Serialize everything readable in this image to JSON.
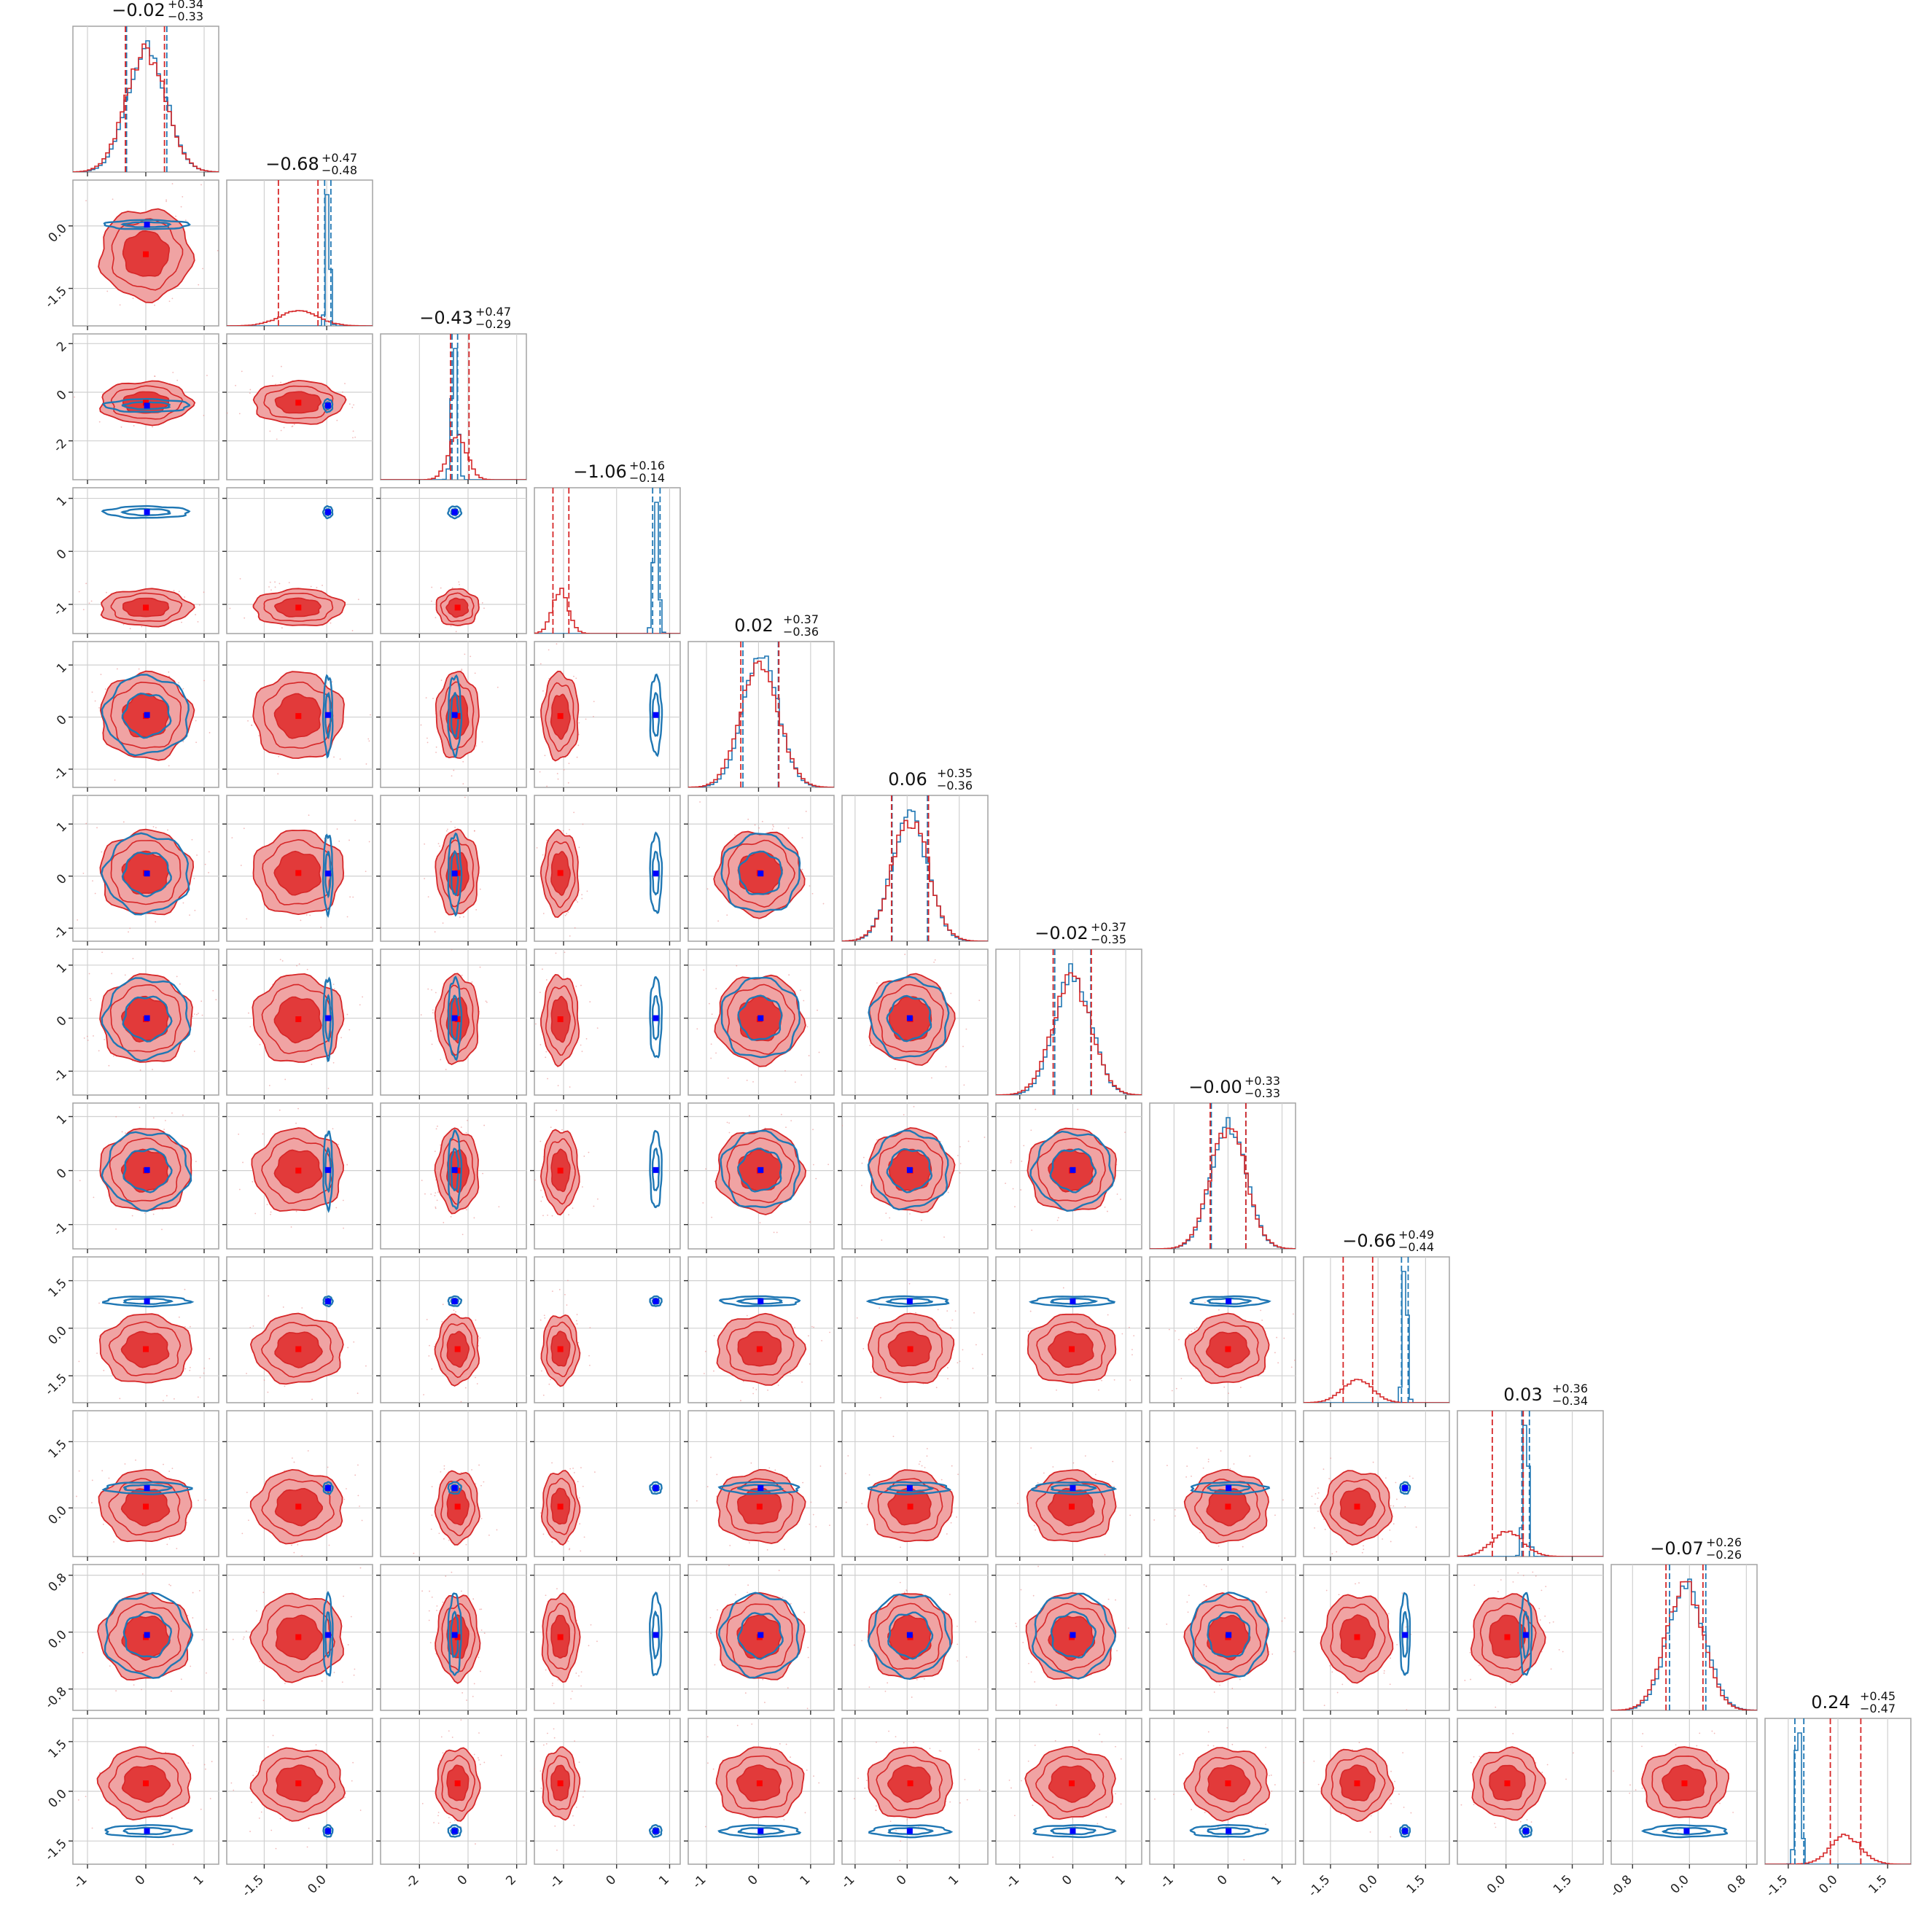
{
  "chart_data": {
    "type": "corner",
    "title": "",
    "colors": {
      "red": "#d62728",
      "red_fill_inner": "#e23a3a",
      "red_fill_outer": "#f0a3a3",
      "blue": "#1f77b4",
      "marker_blue": "#0000ff",
      "marker_red": "#ff0000"
    },
    "grid": true,
    "series": [
      {
        "color": "#d62728",
        "kind": "filled contours + step histogram"
      },
      {
        "color": "#1f77b4",
        "kind": "line contours + step histogram"
      }
    ],
    "parameters": [
      {
        "index": 0,
        "range": [
          -1.25,
          1.25
        ],
        "ticks": [
          -1,
          0,
          1
        ],
        "tick_labels": [
          "-1",
          "0",
          "1"
        ],
        "title": "−0.02",
        "title_plus": "+0.34",
        "title_minus": "−0.33",
        "red": {
          "mean": 0.0,
          "sd": 0.34
        },
        "blue": {
          "mean": 0.02,
          "sd": 0.33
        },
        "red_quantiles": [
          -0.35,
          0.32
        ],
        "blue_quantiles": [
          -0.33,
          0.36
        ]
      },
      {
        "index": 1,
        "range": [
          -2.4,
          1.1
        ],
        "ticks": [
          -1.5,
          0.0
        ],
        "tick_labels": [
          "-1.5",
          "0.0"
        ],
        "title": "−0.68",
        "title_plus": "+0.47",
        "title_minus": "−0.48",
        "red": {
          "mean": -0.68,
          "sd": 0.47
        },
        "blue": {
          "mean": 0.03,
          "sd": 0.05
        },
        "red_quantiles": [
          -1.16,
          -0.21
        ],
        "blue_quantiles": [
          -0.05,
          0.1
        ]
      },
      {
        "index": 2,
        "range": [
          -3.6,
          2.4
        ],
        "ticks": [
          -2,
          0,
          2
        ],
        "tick_labels": [
          "-2",
          "0",
          "2"
        ],
        "title": "−0.43",
        "title_plus": "+0.47",
        "title_minus": "−0.29",
        "red": {
          "mean": -0.43,
          "sd": 0.38
        },
        "blue": {
          "mean": -0.55,
          "sd": 0.12
        },
        "red_quantiles": [
          -0.72,
          0.04
        ],
        "blue_quantiles": [
          -0.66,
          -0.43
        ]
      },
      {
        "index": 3,
        "range": [
          -1.55,
          1.2
        ],
        "ticks": [
          -1,
          0,
          1
        ],
        "tick_labels": [
          "-1",
          "0",
          "1"
        ],
        "title": "−1.06",
        "title_plus": "+0.16",
        "title_minus": "−0.14",
        "red": {
          "mean": -1.06,
          "sd": 0.15
        },
        "blue": {
          "mean": 0.74,
          "sd": 0.05
        },
        "red_quantiles": [
          -1.2,
          -0.9
        ],
        "blue_quantiles": [
          0.68,
          0.82
        ]
      },
      {
        "index": 4,
        "range": [
          -1.35,
          1.45
        ],
        "ticks": [
          -1,
          0,
          1
        ],
        "tick_labels": [
          "-1",
          "0",
          "1"
        ],
        "title": "0.02",
        "title_plus": "+0.37",
        "title_minus": "−0.36",
        "red": {
          "mean": 0.02,
          "sd": 0.36
        },
        "blue": {
          "mean": 0.04,
          "sd": 0.34
        },
        "red_quantiles": [
          -0.34,
          0.39
        ],
        "blue_quantiles": [
          -0.3,
          0.38
        ]
      },
      {
        "index": 5,
        "range": [
          -1.25,
          1.55
        ],
        "ticks": [
          -1,
          0,
          1
        ],
        "tick_labels": [
          "-1",
          "0",
          "1"
        ],
        "title": "0.06",
        "title_plus": "+0.35",
        "title_minus": "−0.36",
        "red": {
          "mean": 0.06,
          "sd": 0.35
        },
        "blue": {
          "mean": 0.05,
          "sd": 0.34
        },
        "red_quantiles": [
          -0.3,
          0.41
        ],
        "blue_quantiles": [
          -0.29,
          0.39
        ]
      },
      {
        "index": 6,
        "range": [
          -1.45,
          1.3
        ],
        "ticks": [
          -1,
          0,
          1
        ],
        "tick_labels": [
          "-1",
          "0",
          "1"
        ],
        "title": "−0.02",
        "title_plus": "+0.37",
        "title_minus": "−0.35",
        "red": {
          "mean": -0.02,
          "sd": 0.36
        },
        "blue": {
          "mean": 0.0,
          "sd": 0.34
        },
        "red_quantiles": [
          -0.37,
          0.35
        ],
        "blue_quantiles": [
          -0.34,
          0.34
        ]
      },
      {
        "index": 7,
        "range": [
          -1.45,
          1.25
        ],
        "ticks": [
          -1,
          0,
          1
        ],
        "tick_labels": [
          "-1",
          "0",
          "1"
        ],
        "title": "−0.00",
        "title_plus": "+0.33",
        "title_minus": "−0.33",
        "red": {
          "mean": 0.0,
          "sd": 0.33
        },
        "blue": {
          "mean": 0.01,
          "sd": 0.32
        },
        "red_quantiles": [
          -0.33,
          0.33
        ],
        "blue_quantiles": [
          -0.31,
          0.33
        ]
      },
      {
        "index": 8,
        "range": [
          -2.35,
          2.25
        ],
        "ticks": [
          -1.5,
          0.0,
          1.5
        ],
        "tick_labels": [
          "-1.5",
          "0.0",
          "1.5"
        ],
        "title": "−0.66",
        "title_plus": "+0.49",
        "title_minus": "−0.44",
        "red": {
          "mean": -0.66,
          "sd": 0.47
        },
        "blue": {
          "mean": 0.85,
          "sd": 0.07
        },
        "red_quantiles": [
          -1.1,
          -0.17
        ],
        "blue_quantiles": [
          0.74,
          0.95
        ]
      },
      {
        "index": 9,
        "range": [
          -1.1,
          2.2
        ],
        "ticks": [
          0.0,
          1.5
        ],
        "tick_labels": [
          "0.0",
          "1.5"
        ],
        "title": "0.03",
        "title_plus": "+0.36",
        "title_minus": "−0.34",
        "red": {
          "mean": 0.03,
          "sd": 0.35
        },
        "blue": {
          "mean": 0.45,
          "sd": 0.06
        },
        "red_quantiles": [
          -0.31,
          0.39
        ],
        "blue_quantiles": [
          0.36,
          0.53
        ]
      },
      {
        "index": 10,
        "range": [
          -1.1,
          0.95
        ],
        "ticks": [
          -0.8,
          0.0,
          0.8
        ],
        "tick_labels": [
          "-0.8",
          "0.0",
          "0.8"
        ],
        "title": "−0.07",
        "title_plus": "+0.26",
        "title_minus": "−0.26",
        "red": {
          "mean": -0.07,
          "sd": 0.26
        },
        "blue": {
          "mean": -0.04,
          "sd": 0.26
        },
        "red_quantiles": [
          -0.33,
          0.19
        ],
        "blue_quantiles": [
          -0.28,
          0.23
        ]
      },
      {
        "index": 11,
        "range": [
          -2.2,
          2.2
        ],
        "ticks": [
          -1.5,
          0.0,
          1.5
        ],
        "tick_labels": [
          "-1.5",
          "0.0",
          "1.5"
        ],
        "title": "0.24",
        "title_plus": "+0.45",
        "title_minus": "−0.47",
        "red": {
          "mean": 0.24,
          "sd": 0.46
        },
        "blue": {
          "mean": -1.2,
          "sd": 0.08
        },
        "red_quantiles": [
          -0.23,
          0.69
        ],
        "blue_quantiles": [
          -1.3,
          -1.03
        ]
      }
    ]
  }
}
